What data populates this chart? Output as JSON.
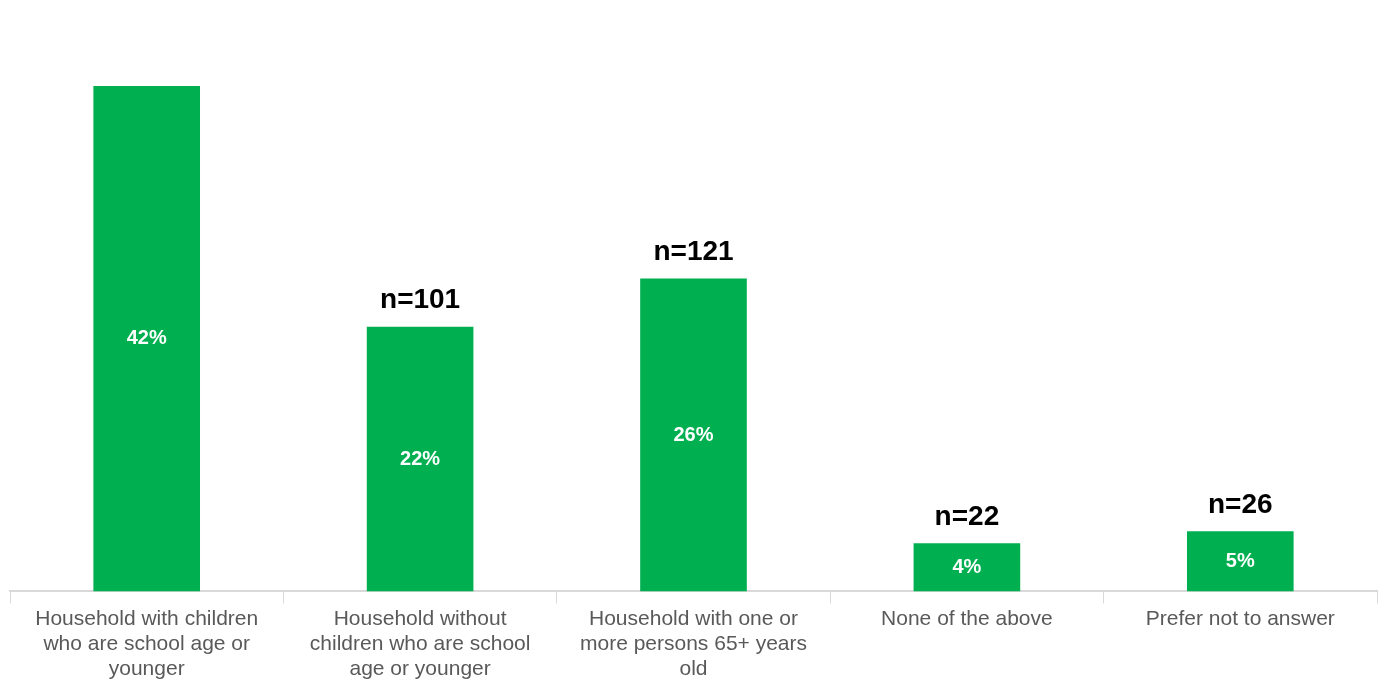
{
  "chart_data": {
    "type": "bar",
    "categories": [
      "Household with children who are school age or younger",
      "Household without children who are school age or younger",
      "Household with one or more persons 65+ years old",
      "None of the above",
      "Prefer not to answer"
    ],
    "values": [
      42,
      22,
      26,
      4,
      5
    ],
    "value_labels": [
      "42%",
      "22%",
      "26%",
      "4%",
      "5%"
    ],
    "color": "#00b050",
    "grid": false,
    "legend": false,
    "annotations": [
      {
        "text": "n=101",
        "x": "Household without children who are school age or younger",
        "y": 22
      },
      {
        "text": "n=121",
        "x": "Household with one or more persons 65+ years old",
        "y": 26
      },
      {
        "text": "n=22",
        "x": "None of the above",
        "y": 4
      },
      {
        "text": "n=26",
        "x": "Prefer not to answer",
        "y": 5
      }
    ]
  }
}
